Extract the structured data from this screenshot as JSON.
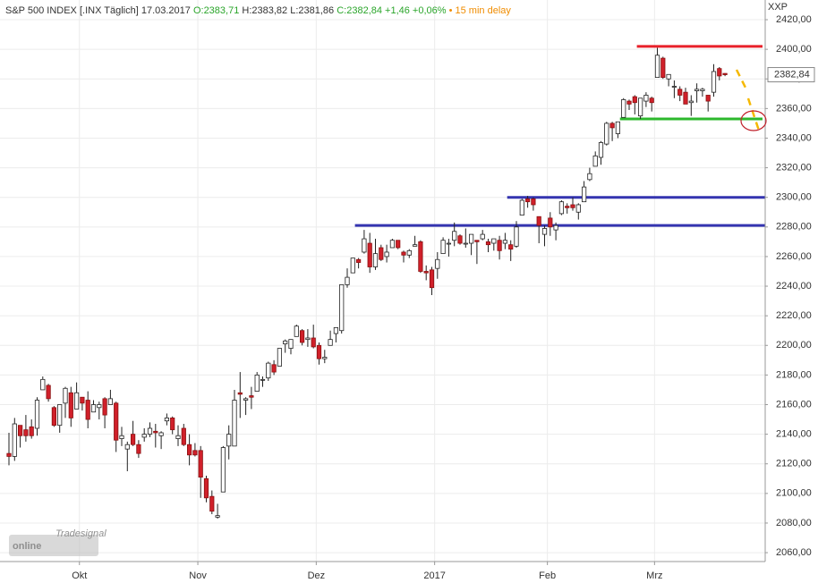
{
  "header": {
    "title": "S&P 500 INDEX [.INX Täglich] 17.03.2017",
    "open": "O:2383,71",
    "high": "H:2383,82",
    "low": "L:2381,86",
    "close": "C:2382,84 +1,46 +0,06%",
    "delay": "• 15 min delay",
    "symbol": "XXP"
  },
  "logo": {
    "brand": "Tradesignal",
    "name": "online"
  },
  "chart_data": {
    "type": "candlestick",
    "categories": [
      null,
      null,
      null,
      null,
      null,
      null,
      null,
      null,
      null,
      null,
      null,
      null,
      null,
      "Okt",
      null,
      null,
      null,
      null,
      null,
      null,
      null,
      null,
      null,
      null,
      null,
      null,
      null,
      null,
      null,
      null,
      null,
      null,
      null,
      null,
      "Nov",
      null,
      null,
      null,
      null,
      null,
      null,
      null,
      null,
      null,
      null,
      null,
      null,
      null,
      null,
      null,
      null,
      null,
      null,
      null,
      null,
      "Dez",
      null,
      null,
      null,
      null,
      null,
      null,
      null,
      null,
      null,
      null,
      null,
      null,
      null,
      null,
      null,
      null,
      null,
      null,
      null,
      null,
      "2017",
      null,
      null,
      null,
      null,
      null,
      null,
      null,
      null,
      null,
      null,
      null,
      null,
      null,
      null,
      null,
      null,
      null,
      null,
      null,
      "Feb",
      null,
      null,
      null,
      null,
      null,
      null,
      null,
      null,
      null,
      null,
      null,
      null,
      null,
      null,
      null,
      null,
      null,
      null,
      "Mrz",
      null,
      null,
      null,
      null,
      null,
      null,
      null,
      null,
      null,
      null,
      null,
      null
    ],
    "open": [
      2127,
      2125,
      2146,
      2143,
      2145,
      2144,
      2170,
      2173,
      2158,
      2146,
      2161,
      2168,
      2157,
      2165,
      2163,
      2155,
      2158,
      2164,
      2160,
      2161,
      2137,
      2130,
      2140,
      2133,
      2138,
      2140,
      2142,
      2139,
      2149,
      2151,
      2137,
      2144,
      2133,
      2129,
      2129,
      2110,
      2098,
      2084,
      2101,
      2132,
      2132,
      2168,
      2163,
      2166,
      2169,
      2177,
      2178,
      2187,
      2186,
      2201,
      2198,
      2206,
      2210,
      2204,
      2205,
      2200,
      2191,
      2200,
      2208,
      2210,
      2241,
      2249,
      2258,
      2263,
      2269,
      2253,
      2266,
      2260,
      2266,
      2271,
      2263,
      2261,
      2267,
      2270,
      2250,
      2251,
      2252,
      2262,
      2269,
      2271,
      2274,
      2269,
      2269,
      2271,
      2272,
      2270,
      2269,
      2271,
      2269,
      2268,
      2267,
      2288,
      2299,
      2299,
      2287,
      2275,
      2286,
      2278,
      2289,
      2294,
      2295,
      2290,
      2297,
      2312,
      2321,
      2327,
      2336,
      2350,
      2343,
      2354,
      2365,
      2368,
      2355,
      2365,
      2367,
      2381,
      2394,
      2380,
      2375,
      2373,
      2371,
      2364,
      2372,
      2372,
      2369,
      2371,
      2387,
      2383.71
    ],
    "high": [
      2141,
      2151,
      2146,
      2153,
      2150,
      2165,
      2179,
      2174,
      2159,
      2160,
      2172,
      2172,
      2175,
      2165,
      2169,
      2163,
      2162,
      2165,
      2170,
      2162,
      2145,
      2135,
      2149,
      2136,
      2144,
      2148,
      2147,
      2142,
      2154,
      2152,
      2146,
      2147,
      2140,
      2134,
      2132,
      2112,
      2102,
      2093,
      2132,
      2146,
      2170,
      2182,
      2165,
      2172,
      2182,
      2179,
      2189,
      2190,
      2198,
      2204,
      2204,
      2214,
      2211,
      2211,
      2214,
      2202,
      2197,
      2210,
      2212,
      2241,
      2252,
      2259,
      2259,
      2278,
      2276,
      2272,
      2268,
      2268,
      2272,
      2271,
      2264,
      2265,
      2274,
      2271,
      2254,
      2253,
      2263,
      2273,
      2272,
      2283,
      2275,
      2279,
      2275,
      2271,
      2278,
      2272,
      2272,
      2274,
      2276,
      2271,
      2284,
      2299,
      2301,
      2300,
      2287,
      2281,
      2290,
      2283,
      2298,
      2296,
      2300,
      2296,
      2311,
      2320,
      2331,
      2338,
      2351,
      2351,
      2351,
      2367,
      2366,
      2369,
      2367,
      2371,
      2368,
      2401,
      2395,
      2383,
      2379,
      2375,
      2374,
      2369,
      2377,
      2374,
      2369,
      2390,
      2388,
      2383.82
    ],
    "low": [
      2119,
      2122,
      2131,
      2135,
      2137,
      2139,
      2170,
      2162,
      2145,
      2141,
      2151,
      2145,
      2157,
      2156,
      2144,
      2155,
      2150,
      2144,
      2160,
      2128,
      2132,
      2115,
      2132,
      2124,
      2135,
      2138,
      2131,
      2130,
      2146,
      2140,
      2132,
      2132,
      2119,
      2125,
      2097,
      2094,
      2086,
      2083,
      2101,
      2123,
      2132,
      2151,
      2153,
      2157,
      2169,
      2172,
      2176,
      2180,
      2186,
      2195,
      2194,
      2206,
      2200,
      2199,
      2198,
      2187,
      2188,
      2200,
      2202,
      2208,
      2239,
      2249,
      2252,
      2262,
      2249,
      2251,
      2257,
      2256,
      2266,
      2265,
      2256,
      2259,
      2267,
      2249,
      2244,
      2234,
      2245,
      2262,
      2260,
      2267,
      2268,
      2266,
      2261,
      2255,
      2271,
      2263,
      2264,
      2258,
      2265,
      2257,
      2266,
      2288,
      2293,
      2291,
      2269,
      2267,
      2274,
      2271,
      2288,
      2289,
      2291,
      2285,
      2297,
      2311,
      2321,
      2322,
      2335,
      2338,
      2340,
      2354,
      2359,
      2356,
      2353,
      2361,
      2358,
      2381,
      2380,
      2375,
      2367,
      2365,
      2363,
      2355,
      2364,
      2368,
      2358,
      2368,
      2379,
      2381.86
    ],
    "close": [
      2125,
      2147,
      2139,
      2139,
      2139,
      2163,
      2177,
      2164,
      2146,
      2160,
      2171,
      2151,
      2168,
      2161,
      2150,
      2160,
      2160,
      2153,
      2164,
      2136,
      2139,
      2133,
      2133,
      2127,
      2140,
      2144,
      2141,
      2141,
      2151,
      2143,
      2139,
      2133,
      2126,
      2126,
      2111,
      2097,
      2088,
      2085,
      2131,
      2140,
      2163,
      2167,
      2164,
      2165,
      2180,
      2177,
      2188,
      2182,
      2198,
      2203,
      2204,
      2213,
      2202,
      2205,
      2199,
      2191,
      2192,
      2204,
      2212,
      2241,
      2246,
      2259,
      2256,
      2272,
      2253,
      2262,
      2258,
      2263,
      2271,
      2266,
      2261,
      2264,
      2268,
      2250,
      2249,
      2239,
      2258,
      2271,
      2269,
      2277,
      2269,
      2269,
      2275,
      2270,
      2275,
      2268,
      2272,
      2264,
      2271,
      2265,
      2280,
      2298,
      2297,
      2295,
      2281,
      2279,
      2280,
      2281,
      2297,
      2293,
      2293,
      2295,
      2307,
      2316,
      2328,
      2337,
      2350,
      2347,
      2351,
      2366,
      2363,
      2364,
      2367,
      2369,
      2364,
      2396,
      2381,
      2383,
      2375,
      2369,
      2363,
      2365,
      2373,
      2373,
      2365,
      2385,
      2382,
      2382.84
    ],
    "up_color": "#ffffff",
    "down_color": "#d0202a",
    "ylim": [
      2054,
      2433.3
    ],
    "yticks": [
      {
        "value": 2060,
        "label": "2060,00"
      },
      {
        "value": 2080,
        "label": "2080,00"
      },
      {
        "value": 2100,
        "label": "2100,00"
      },
      {
        "value": 2120,
        "label": "2120,00"
      },
      {
        "value": 2140,
        "label": "2140,00"
      },
      {
        "value": 2160,
        "label": "2160,00"
      },
      {
        "value": 2180,
        "label": "2180,00"
      },
      {
        "value": 2200,
        "label": "2200,00"
      },
      {
        "value": 2220,
        "label": "2220,00"
      },
      {
        "value": 2240,
        "label": "2240,00"
      },
      {
        "value": 2260,
        "label": "2260,00"
      },
      {
        "value": 2280,
        "label": "2280,00"
      },
      {
        "value": 2300,
        "label": "2300,00"
      },
      {
        "value": 2320,
        "label": "2320,00"
      },
      {
        "value": 2340,
        "label": "2340,00"
      },
      {
        "value": 2360,
        "label": "2360,00"
      },
      {
        "value": 2380,
        "label": "2380,00"
      },
      {
        "value": 2400,
        "label": "2400,00"
      },
      {
        "value": 2420,
        "label": "2420,00"
      }
    ],
    "last_price": {
      "value": 2382.84,
      "label": "2382,84"
    },
    "levels": [
      {
        "value": 2402,
        "color": "#e8202a"
      },
      {
        "value": 2353,
        "color": "#2db82d"
      },
      {
        "value": 2300,
        "color": "#3434b0"
      },
      {
        "value": 2281,
        "color": "#3434b0"
      }
    ],
    "grid": true
  }
}
